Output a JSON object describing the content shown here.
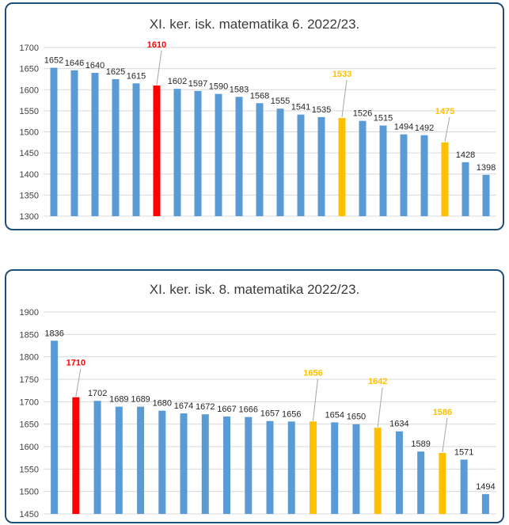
{
  "colors": {
    "default": "#5b9bd5",
    "highlight_red": "#ff0000",
    "highlight_yellow": "#ffc000",
    "grid": "#d9d9d9",
    "axis_text": "#404040",
    "border": "#1f4e79"
  },
  "chart_data": [
    {
      "type": "bar",
      "title": "XI. ker. isk. matematika 6. 2022/23.",
      "ylim": [
        1300,
        1700
      ],
      "ytick_step": 50,
      "grid": true,
      "values": [
        1652,
        1646,
        1640,
        1625,
        1615,
        1610,
        1602,
        1597,
        1590,
        1583,
        1568,
        1555,
        1541,
        1535,
        1533,
        1526,
        1515,
        1494,
        1492,
        1475,
        1428,
        1398
      ],
      "bar_colors": [
        "default",
        "default",
        "default",
        "default",
        "default",
        "highlight_red",
        "default",
        "default",
        "default",
        "default",
        "default",
        "default",
        "default",
        "default",
        "highlight_yellow",
        "default",
        "default",
        "default",
        "default",
        "highlight_yellow",
        "default",
        "default"
      ]
    },
    {
      "type": "bar",
      "title": "XI. ker. isk. 8. matematika 2022/23.",
      "ylim": [
        1450,
        1900
      ],
      "ytick_step": 50,
      "grid": true,
      "values": [
        1836,
        1710,
        1702,
        1689,
        1689,
        1680,
        1674,
        1672,
        1667,
        1666,
        1657,
        1656,
        1656,
        1654,
        1650,
        1642,
        1634,
        1589,
        1586,
        1571,
        1494
      ],
      "bar_colors": [
        "default",
        "highlight_red",
        "default",
        "default",
        "default",
        "default",
        "default",
        "default",
        "default",
        "default",
        "default",
        "default",
        "highlight_yellow",
        "default",
        "default",
        "highlight_yellow",
        "default",
        "default",
        "highlight_yellow",
        "default",
        "default"
      ]
    }
  ]
}
